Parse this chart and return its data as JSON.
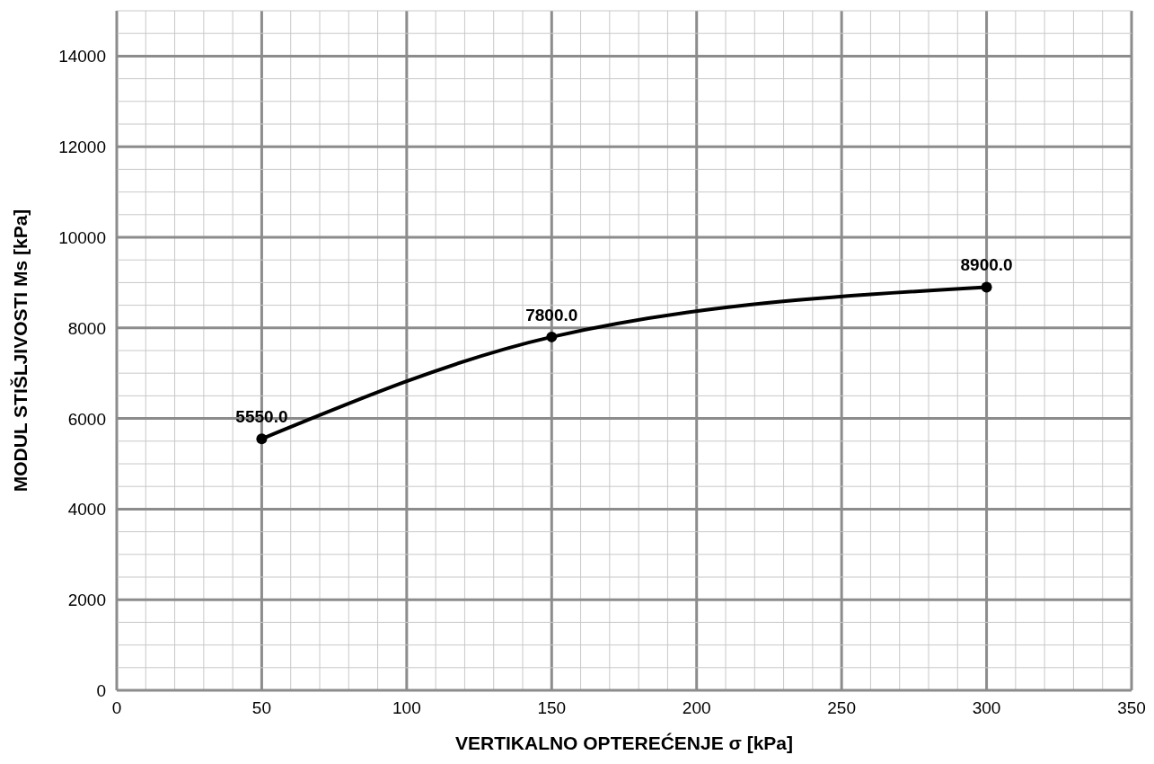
{
  "chart_data": {
    "type": "line",
    "xlabel": "VERTIKALNO  OPTEREĆENJE  σ [kPa]",
    "ylabel": "MODUL  STIŠLJIVOSTI Ms [kPa]",
    "x": [
      50,
      150,
      300
    ],
    "series": [
      {
        "color": "#000000",
        "values": [
          5550.0,
          7800.0,
          8900.0
        ],
        "value_labels": [
          "5550.0",
          "7800.0",
          "8900.0"
        ]
      }
    ],
    "xlim": [
      0,
      350
    ],
    "ylim": [
      0,
      15000
    ],
    "xticks": [
      0,
      {
        "value": 10,
        "label": null
      },
      {
        "value": 20,
        "label": null
      },
      {
        "value": 30,
        "label": null
      },
      {
        "value": 40,
        "label": null
      },
      50,
      {
        "value": 60,
        "label": null
      },
      {
        "value": 70,
        "label": null
      },
      {
        "value": 80,
        "label": null
      },
      {
        "value": 90,
        "label": null
      },
      100,
      {
        "value": 110,
        "label": null
      },
      {
        "value": 120,
        "label": null
      },
      {
        "value": 130,
        "label": null
      },
      {
        "value": 140,
        "label": null
      },
      150,
      {
        "value": 160,
        "label": null
      },
      {
        "value": 170,
        "label": null
      },
      {
        "value": 180,
        "label": null
      },
      {
        "value": 190,
        "label": null
      },
      200,
      {
        "value": 210,
        "label": null
      },
      {
        "value": 220,
        "label": null
      },
      {
        "value": 230,
        "label": null
      },
      {
        "value": 240,
        "label": null
      },
      250,
      {
        "value": 260,
        "label": null
      },
      {
        "value": 270,
        "label": null
      },
      {
        "value": 280,
        "label": null
      },
      {
        "value": 290,
        "label": null
      },
      300,
      {
        "value": 310,
        "label": null
      },
      {
        "value": 320,
        "label": null
      },
      {
        "value": 330,
        "label": null
      },
      {
        "value": 340,
        "label": null
      },
      350
    ],
    "yticks": [
      0,
      {
        "value": 500,
        "label": null
      },
      {
        "value": 1000,
        "label": null
      },
      {
        "value": 1500,
        "label": null
      },
      2000,
      {
        "value": 2500,
        "label": null
      },
      {
        "value": 3000,
        "label": null
      },
      {
        "value": 3500,
        "label": null
      },
      4000,
      {
        "value": 4500,
        "label": null
      },
      {
        "value": 5000,
        "label": null
      },
      {
        "value": 5500,
        "label": null
      },
      6000,
      {
        "value": 6500,
        "label": null
      },
      {
        "value": 7000,
        "label": null
      },
      {
        "value": 7500,
        "label": null
      },
      8000,
      {
        "value": 8500,
        "label": null
      },
      {
        "value": 9000,
        "label": null
      },
      {
        "value": 9500,
        "label": null
      },
      10000,
      {
        "value": 10500,
        "label": null
      },
      {
        "value": 11000,
        "label": null
      },
      {
        "value": 11500,
        "label": null
      },
      12000,
      {
        "value": 12500,
        "label": null
      },
      {
        "value": 13000,
        "label": null
      },
      {
        "value": 13500,
        "label": null
      },
      14000,
      {
        "value": 14500,
        "label": null
      },
      {
        "value": 15000,
        "label": null
      }
    ],
    "grid": true,
    "marker": "circle",
    "line_style": "solid"
  }
}
